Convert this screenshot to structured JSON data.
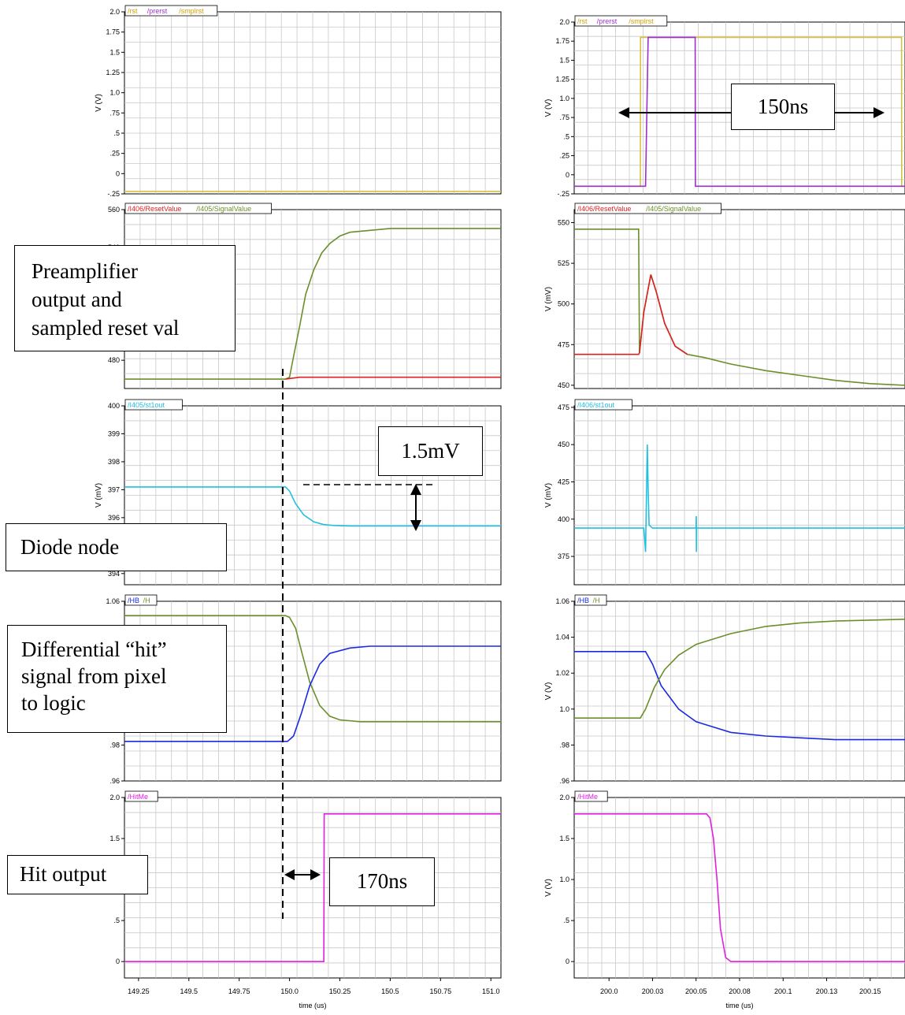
{
  "annotations": {
    "preamp": [
      "Preamplifier",
      "output and",
      "sampled reset val"
    ],
    "diode": "Diode node",
    "hit_signal": [
      "Differential “hit”",
      "signal from pixel",
      "to logic"
    ],
    "hit_output": "Hit output",
    "delta_mv": "1.5mV",
    "delay_170": "170ns",
    "pulse_150": "150ns"
  },
  "chart_data": [
    {
      "type": "line",
      "panel": "left-1",
      "ylabel": "V (V)",
      "ylim": [
        -0.25,
        2.0
      ],
      "yticks": [
        "2.0",
        "1.75",
        "1.5",
        "1.25",
        "1.0",
        ".75",
        ".5",
        ".25",
        "0",
        "-.25"
      ],
      "xlim": [
        149.18,
        151.05
      ],
      "legend": [
        {
          "name": "/rst",
          "color": "#d4a000"
        },
        {
          "name": "/prerst",
          "color": "#9b30d0"
        },
        {
          "name": "/smplrst",
          "color": "#d4a000"
        }
      ],
      "series": [
        {
          "name": "/smplrst",
          "color": "#d8c040",
          "x": [
            149.18,
            151.05
          ],
          "y": [
            -0.22,
            -0.22
          ]
        }
      ]
    },
    {
      "type": "line",
      "panel": "left-2",
      "ylabel": "",
      "ylim": [
        465,
        560
      ],
      "yticks": [
        "560",
        "540",
        "480"
      ],
      "xlim": [
        149.18,
        151.05
      ],
      "legend": [
        {
          "name": "/I406/ResetValue",
          "color": "#e02020"
        },
        {
          "name": "/I405/SignalValue",
          "color": "#6b8f2a"
        }
      ],
      "series": [
        {
          "name": "/I405/SignalValue",
          "color": "#6b8f2a",
          "x": [
            149.18,
            149.98,
            150.0,
            150.02,
            150.05,
            150.08,
            150.12,
            150.16,
            150.2,
            150.25,
            150.3,
            150.4,
            150.5,
            151.05
          ],
          "y": [
            470,
            470,
            471,
            482,
            498,
            515,
            528,
            537,
            542,
            546,
            548,
            549,
            550,
            550
          ]
        },
        {
          "name": "/I406/ResetValue",
          "color": "#e02020",
          "x": [
            149.98,
            150.05,
            151.05
          ],
          "y": [
            470,
            471,
            471
          ]
        }
      ]
    },
    {
      "type": "line",
      "panel": "left-3",
      "ylabel": "V (mV)",
      "ylim": [
        393.6,
        400.0
      ],
      "yticks": [
        "400",
        "399",
        "398",
        "397",
        "396",
        "394"
      ],
      "xlim": [
        149.18,
        151.05
      ],
      "legend": [
        {
          "name": "/I405/st1out",
          "color": "#20c0e0"
        }
      ],
      "series": [
        {
          "name": "/I405/st1out",
          "color": "#20c0e0",
          "x": [
            149.18,
            149.98,
            150.0,
            150.03,
            150.07,
            150.12,
            150.17,
            150.22,
            150.3,
            151.05
          ],
          "y": [
            397.1,
            397.1,
            396.95,
            396.5,
            396.1,
            395.85,
            395.75,
            395.72,
            395.7,
            395.7
          ]
        }
      ]
    },
    {
      "type": "line",
      "panel": "left-4",
      "ylabel": "",
      "ylim": [
        0.96,
        1.06
      ],
      "yticks": [
        "1.06",
        ".98",
        ".96"
      ],
      "xlim": [
        149.18,
        151.05
      ],
      "legend": [
        {
          "name": "/HB",
          "color": "#1a2ae0"
        },
        {
          "name": "/H",
          "color": "#6b8f2a"
        }
      ],
      "series": [
        {
          "name": "/H",
          "color": "#6b8f2a",
          "x": [
            149.18,
            149.98,
            150.0,
            150.03,
            150.06,
            150.1,
            150.15,
            150.2,
            150.25,
            150.35,
            151.05
          ],
          "y": [
            1.052,
            1.052,
            1.051,
            1.045,
            1.032,
            1.015,
            1.002,
            0.996,
            0.994,
            0.993,
            0.993
          ]
        },
        {
          "name": "/HB",
          "color": "#1a2ae0",
          "x": [
            149.18,
            149.99,
            150.02,
            150.06,
            150.1,
            150.15,
            150.2,
            150.3,
            150.4,
            150.5,
            151.05
          ],
          "y": [
            0.982,
            0.982,
            0.985,
            0.998,
            1.013,
            1.025,
            1.031,
            1.034,
            1.035,
            1.035,
            1.035
          ]
        }
      ]
    },
    {
      "type": "line",
      "panel": "left-5",
      "ylabel": "",
      "ylim": [
        -0.2,
        2.0
      ],
      "yticks": [
        "2.0",
        "1.5",
        ".5",
        "0"
      ],
      "xlabel": "time (us)",
      "xlim": [
        149.18,
        151.05
      ],
      "xticks": [
        149.25,
        149.5,
        149.75,
        150.0,
        150.25,
        150.5,
        150.75,
        151.0
      ],
      "xticklabels": [
        "149.25",
        "149.5",
        "149.75",
        "150.0",
        "150.25",
        "150.5",
        "150.75",
        "151.0"
      ],
      "legend": [
        {
          "name": "/HitMe",
          "color": "#e020e0"
        }
      ],
      "series": [
        {
          "name": "/HitMe",
          "color": "#e020e0",
          "x": [
            149.18,
            150.17,
            150.172,
            151.05
          ],
          "y": [
            0,
            0,
            1.8,
            1.8
          ]
        }
      ]
    },
    {
      "type": "line",
      "panel": "right-1",
      "ylabel": "V (V)",
      "ylim": [
        -0.25,
        2.0
      ],
      "yticks": [
        "2.0",
        "1.75",
        "1.5",
        "1.25",
        "1.0",
        ".75",
        ".5",
        ".25",
        "0",
        "-.25"
      ],
      "xlim": [
        199.98,
        200.17
      ],
      "legend": [
        {
          "name": "/rst",
          "color": "#d4a000"
        },
        {
          "name": "/prerst",
          "color": "#9b30d0"
        },
        {
          "name": "/smplrst",
          "color": "#d4a000"
        }
      ],
      "series": [
        {
          "name": "/smplrst",
          "color": "#d8c040",
          "x": [
            199.98,
            200.018,
            200.0181,
            200.168,
            200.1681,
            200.17
          ],
          "y": [
            -0.15,
            -0.15,
            1.8,
            1.8,
            -0.15,
            -0.15
          ]
        },
        {
          "name": "/prerst",
          "color": "#9b30d0",
          "x": [
            199.98,
            200.021,
            200.0225,
            200.0495,
            200.0496,
            200.17
          ],
          "y": [
            -0.15,
            -0.15,
            1.8,
            1.8,
            -0.15,
            -0.15
          ]
        }
      ]
    },
    {
      "type": "line",
      "panel": "right-2",
      "ylabel": "V (mV)",
      "ylim": [
        448,
        558
      ],
      "yticks": [
        "550",
        "525",
        "500",
        "475",
        "450"
      ],
      "xlim": [
        199.98,
        200.17
      ],
      "legend": [
        {
          "name": "/I406/ResetValue",
          "color": "#e02020"
        },
        {
          "name": "/I405/SignalValue",
          "color": "#6b8f2a"
        }
      ],
      "series": [
        {
          "name": "/I405/SignalValue",
          "color": "#6b8f2a",
          "x": [
            199.98,
            200.017,
            200.0175,
            200.02,
            200.024,
            200.027,
            200.032,
            200.038,
            200.045,
            200.055,
            200.07,
            200.09,
            200.11,
            200.13,
            200.15,
            200.17
          ],
          "y": [
            546,
            546,
            470,
            495,
            518,
            508,
            488,
            474,
            469,
            467,
            463,
            459,
            456,
            453,
            451,
            450
          ]
        },
        {
          "name": "/I406/ResetValue",
          "color": "#e02020",
          "x": [
            199.98,
            200.017,
            200.0175,
            200.02,
            200.024,
            200.027,
            200.032,
            200.038,
            200.045
          ],
          "y": [
            469,
            469,
            470,
            495,
            518,
            508,
            488,
            474,
            469
          ]
        }
      ]
    },
    {
      "type": "line",
      "panel": "right-3",
      "ylabel": "V (mV)",
      "ylim": [
        356,
        476
      ],
      "yticks": [
        "475",
        "450",
        "425",
        "400",
        "375"
      ],
      "xlim": [
        199.98,
        200.17
      ],
      "legend": [
        {
          "name": "/I406/st1out",
          "color": "#20c0e0"
        }
      ],
      "series": [
        {
          "name": "/I406/st1out",
          "color": "#20c0e0",
          "x": [
            199.98,
            200.02,
            200.021,
            200.022,
            200.0225,
            200.023,
            200.025,
            200.05,
            200.0501,
            200.0502,
            200.0503,
            200.17
          ],
          "y": [
            394,
            394,
            378,
            450,
            420,
            396,
            394,
            394,
            402,
            378,
            394,
            394
          ]
        }
      ]
    },
    {
      "type": "line",
      "panel": "right-4",
      "ylabel": "V (V)",
      "ylim": [
        0.96,
        1.06
      ],
      "yticks": [
        "1.06",
        "1.04",
        "1.02",
        "1.0",
        ".98",
        ".96"
      ],
      "xlim": [
        199.98,
        200.17
      ],
      "legend": [
        {
          "name": "/HB",
          "color": "#1a2ae0"
        },
        {
          "name": "/H",
          "color": "#6b8f2a"
        }
      ],
      "series": [
        {
          "name": "/HB",
          "color": "#1a2ae0",
          "x": [
            199.98,
            200.021,
            200.025,
            200.03,
            200.04,
            200.05,
            200.07,
            200.09,
            200.11,
            200.13,
            200.17
          ],
          "y": [
            1.032,
            1.032,
            1.025,
            1.013,
            1.0,
            0.993,
            0.987,
            0.985,
            0.984,
            0.983,
            0.983
          ]
        },
        {
          "name": "/H",
          "color": "#6b8f2a",
          "x": [
            199.98,
            200.018,
            200.021,
            200.026,
            200.032,
            200.04,
            200.05,
            200.07,
            200.09,
            200.11,
            200.13,
            200.17
          ],
          "y": [
            0.995,
            0.995,
            1.0,
            1.012,
            1.022,
            1.03,
            1.036,
            1.042,
            1.046,
            1.048,
            1.049,
            1.05
          ]
        }
      ]
    },
    {
      "type": "line",
      "panel": "right-5",
      "ylabel": "V (V)",
      "ylim": [
        -0.2,
        2.0
      ],
      "yticks": [
        "2.0",
        "1.5",
        "1.0",
        ".5",
        "0"
      ],
      "xlabel": "time (us)",
      "xlim": [
        199.98,
        200.17
      ],
      "xticks": [
        200.0,
        200.025,
        200.05,
        200.075,
        200.1,
        200.125,
        200.15
      ],
      "xticklabels": [
        "200.0",
        "200.03",
        "200.05",
        "200.08",
        "200.1",
        "200.13",
        "200.15"
      ],
      "legend": [
        {
          "name": "/HitMe",
          "color": "#e020e0"
        }
      ],
      "series": [
        {
          "name": "/HitMe",
          "color": "#e020e0",
          "x": [
            199.98,
            200.056,
            200.058,
            200.06,
            200.062,
            200.064,
            200.067,
            200.07,
            200.17
          ],
          "y": [
            1.8,
            1.8,
            1.75,
            1.5,
            1.0,
            0.4,
            0.05,
            0,
            0
          ]
        }
      ]
    }
  ]
}
